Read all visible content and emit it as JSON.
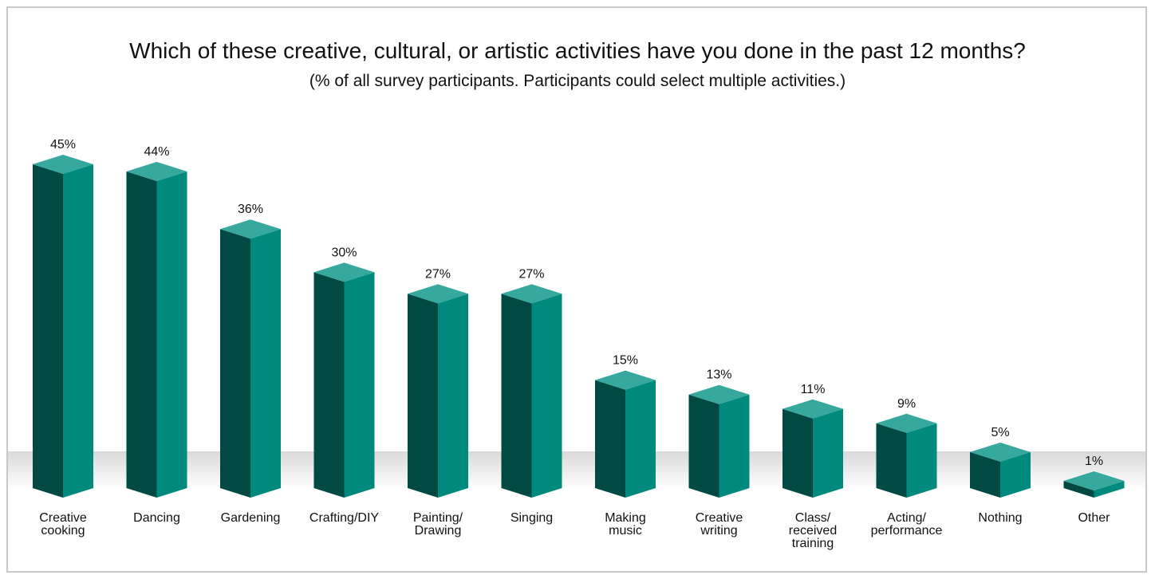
{
  "chart_data": {
    "type": "bar",
    "title": "Which of these creative, cultural, or artistic activities have you done in the past 12 months?",
    "subtitle": "(% of all survey participants. Participants could select multiple activities.)",
    "categories": [
      [
        "Creative",
        "cooking"
      ],
      [
        "Dancing"
      ],
      [
        "Gardening"
      ],
      [
        "Crafting/DIY"
      ],
      [
        "Painting/",
        "Drawing"
      ],
      [
        "Singing"
      ],
      [
        "Making",
        "music"
      ],
      [
        "Creative",
        "writing"
      ],
      [
        "Class/",
        "received",
        "training"
      ],
      [
        "Acting/",
        "performance"
      ],
      [
        "Nothing"
      ],
      [
        "Other"
      ]
    ],
    "values": [
      45,
      44,
      36,
      30,
      27,
      27,
      15,
      13,
      11,
      9,
      5,
      1
    ],
    "value_labels": [
      "45%",
      "44%",
      "36%",
      "30%",
      "27%",
      "27%",
      "15%",
      "13%",
      "11%",
      "9%",
      "5%",
      "1%"
    ],
    "ylim": [
      0,
      45
    ],
    "grid": false,
    "colors": {
      "front": "#008a7e",
      "side": "#004a43",
      "top": "#36a89d",
      "floor": "#e6e6e6"
    }
  }
}
